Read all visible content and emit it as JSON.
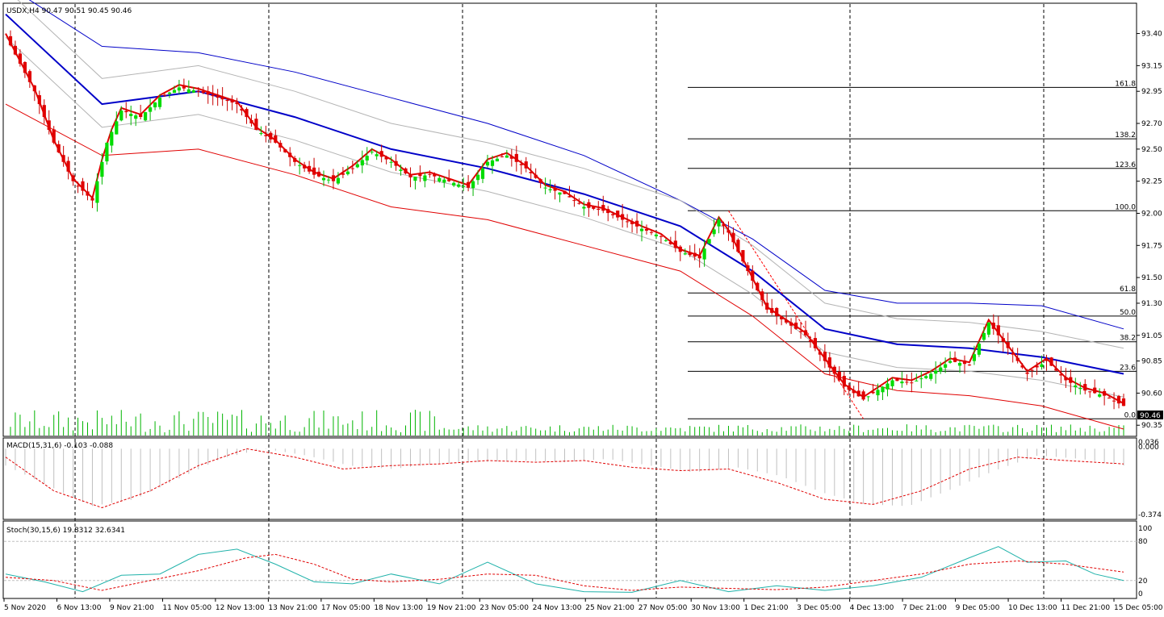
{
  "chart_data": [
    {
      "type": "candlestick",
      "symbol_header": "USDX,H4  90.47 90.51 90.45 90.46",
      "last_price_label": "90.46",
      "price_ticks": [
        "93.40",
        "93.15",
        "92.95",
        "92.70",
        "92.50",
        "92.25",
        "92.00",
        "91.75",
        "91.50",
        "91.30",
        "91.05",
        "90.85",
        "90.60",
        "90.35"
      ],
      "ylim": [
        90.32,
        93.46
      ],
      "x_ticks": [
        "5 Nov 2020",
        "6 Nov 13:00",
        "9 Nov 21:00",
        "11 Nov 05:00",
        "12 Nov 13:00",
        "13 Nov 21:00",
        "17 Nov 05:00",
        "18 Nov 13:00",
        "19 Nov 21:00",
        "23 Nov 05:00",
        "24 Nov 13:00",
        "25 Nov 21:00",
        "27 Nov 05:00",
        "30 Nov 13:00",
        "1 Dec 21:00",
        "3 Dec 05:00",
        "4 Dec 13:00",
        "7 Dec 21:00",
        "9 Dec 05:00",
        "10 Dec 13:00",
        "11 Dec 21:00",
        "15 Dec 05:00"
      ],
      "close_path": [
        [
          0,
          93.38
        ],
        [
          6,
          92.95
        ],
        [
          10,
          92.55
        ],
        [
          14,
          92.25
        ],
        [
          18,
          92.1
        ],
        [
          21,
          92.55
        ],
        [
          24,
          92.8
        ],
        [
          28,
          92.75
        ],
        [
          32,
          92.9
        ],
        [
          36,
          92.98
        ],
        [
          40,
          92.95
        ],
        [
          44,
          92.9
        ],
        [
          48,
          92.85
        ],
        [
          52,
          92.65
        ],
        [
          56,
          92.55
        ],
        [
          60,
          92.4
        ],
        [
          64,
          92.3
        ],
        [
          68,
          92.25
        ],
        [
          72,
          92.35
        ],
        [
          76,
          92.48
        ],
        [
          80,
          92.4
        ],
        [
          84,
          92.28
        ],
        [
          88,
          92.3
        ],
        [
          92,
          92.25
        ],
        [
          96,
          92.2
        ],
        [
          100,
          92.4
        ],
        [
          104,
          92.45
        ],
        [
          108,
          92.35
        ],
        [
          112,
          92.2
        ],
        [
          116,
          92.15
        ],
        [
          120,
          92.05
        ],
        [
          124,
          92.02
        ],
        [
          128,
          91.95
        ],
        [
          132,
          91.88
        ],
        [
          136,
          91.82
        ],
        [
          140,
          91.7
        ],
        [
          144,
          91.65
        ],
        [
          148,
          91.95
        ],
        [
          150,
          91.85
        ],
        [
          154,
          91.55
        ],
        [
          158,
          91.25
        ],
        [
          162,
          91.15
        ],
        [
          166,
          91.05
        ],
        [
          170,
          90.85
        ],
        [
          174,
          90.65
        ],
        [
          178,
          90.55
        ],
        [
          180,
          90.6
        ],
        [
          184,
          90.7
        ],
        [
          188,
          90.68
        ],
        [
          192,
          90.75
        ],
        [
          196,
          90.85
        ],
        [
          200,
          90.82
        ],
        [
          204,
          91.15
        ],
        [
          208,
          90.95
        ],
        [
          212,
          90.75
        ],
        [
          216,
          90.85
        ],
        [
          220,
          90.7
        ],
        [
          224,
          90.62
        ],
        [
          228,
          90.58
        ],
        [
          232,
          90.5
        ]
      ],
      "overlays": [
        {
          "name": "Envelope upper",
          "color": "#0000c8",
          "path": [
            [
              0,
              93.78
            ],
            [
              20,
              93.3
            ],
            [
              40,
              93.25
            ],
            [
              60,
              93.1
            ],
            [
              80,
              92.9
            ],
            [
              100,
              92.7
            ],
            [
              120,
              92.45
            ],
            [
              140,
              92.1
            ],
            [
              155,
              91.8
            ],
            [
              170,
              91.4
            ],
            [
              185,
              91.3
            ],
            [
              200,
              91.3
            ],
            [
              215,
              91.28
            ],
            [
              232,
              91.1
            ]
          ]
        },
        {
          "name": "Moving average",
          "color": "#0000c8",
          "path": [
            [
              0,
              93.55
            ],
            [
              20,
              92.85
            ],
            [
              40,
              92.95
            ],
            [
              60,
              92.75
            ],
            [
              80,
              92.5
            ],
            [
              100,
              92.35
            ],
            [
              120,
              92.15
            ],
            [
              140,
              91.9
            ],
            [
              155,
              91.55
            ],
            [
              170,
              91.1
            ],
            [
              185,
              90.98
            ],
            [
              200,
              90.95
            ],
            [
              215,
              90.88
            ],
            [
              232,
              90.75
            ]
          ]
        },
        {
          "name": "Envelope lower",
          "color": "#e00000",
          "path": [
            [
              0,
              92.85
            ],
            [
              20,
              92.45
            ],
            [
              40,
              92.5
            ],
            [
              60,
              92.3
            ],
            [
              80,
              92.05
            ],
            [
              100,
              91.95
            ],
            [
              120,
              91.75
            ],
            [
              140,
              91.55
            ],
            [
              155,
              91.2
            ],
            [
              170,
              90.75
            ],
            [
              185,
              90.62
            ],
            [
              200,
              90.58
            ],
            [
              215,
              90.5
            ],
            [
              232,
              90.32
            ]
          ]
        }
      ],
      "fibonacci_levels": [
        {
          "label": "161.8",
          "price": 92.98
        },
        {
          "label": "138.2",
          "price": 92.58
        },
        {
          "label": "123.6",
          "price": 92.35
        },
        {
          "label": "100.0",
          "price": 92.02
        },
        {
          "label": "61.8",
          "price": 91.38
        },
        {
          "label": "50.0",
          "price": 91.2
        },
        {
          "label": "38.2",
          "price": 91.0
        },
        {
          "label": "23.6",
          "price": 90.77
        },
        {
          "label": "0.0",
          "price": 90.4
        }
      ]
    },
    {
      "type": "histogram",
      "title": "MACD(15,31,6) -0.103 -0.088",
      "ticks": [
        "0.036",
        "0.000",
        "-0.374"
      ],
      "ylim": [
        -0.4,
        0.04
      ],
      "signal_path": [
        [
          0,
          -0.05
        ],
        [
          10,
          -0.25
        ],
        [
          20,
          -0.35
        ],
        [
          30,
          -0.25
        ],
        [
          40,
          -0.1
        ],
        [
          50,
          0.0
        ],
        [
          60,
          -0.05
        ],
        [
          70,
          -0.12
        ],
        [
          80,
          -0.1
        ],
        [
          90,
          -0.09
        ],
        [
          100,
          -0.07
        ],
        [
          110,
          -0.08
        ],
        [
          120,
          -0.07
        ],
        [
          130,
          -0.11
        ],
        [
          140,
          -0.13
        ],
        [
          150,
          -0.12
        ],
        [
          160,
          -0.2
        ],
        [
          170,
          -0.3
        ],
        [
          180,
          -0.33
        ],
        [
          190,
          -0.25
        ],
        [
          200,
          -0.12
        ],
        [
          210,
          -0.05
        ],
        [
          220,
          -0.07
        ],
        [
          232,
          -0.09
        ]
      ],
      "histogram": [
        -0.1,
        -0.22,
        -0.34,
        -0.3,
        -0.18,
        -0.06,
        0.0,
        -0.04,
        -0.1,
        -0.12,
        -0.09,
        -0.08,
        -0.07,
        -0.08,
        -0.06,
        -0.1,
        -0.14,
        -0.11,
        -0.16,
        -0.26,
        -0.33,
        -0.34,
        -0.24,
        -0.13,
        -0.04,
        -0.06,
        -0.1
      ]
    },
    {
      "type": "line",
      "title": "Stoch(30,15,6) 19.8312 32.6341",
      "ticks": [
        "100",
        "80",
        "20",
        "0"
      ],
      "ylim": [
        0,
        100
      ],
      "levels": [
        80,
        20
      ],
      "main_path": [
        [
          0,
          30
        ],
        [
          8,
          18
        ],
        [
          16,
          3
        ],
        [
          24,
          28
        ],
        [
          32,
          30
        ],
        [
          40,
          60
        ],
        [
          48,
          68
        ],
        [
          56,
          45
        ],
        [
          64,
          18
        ],
        [
          72,
          15
        ],
        [
          80,
          30
        ],
        [
          90,
          15
        ],
        [
          100,
          48
        ],
        [
          110,
          15
        ],
        [
          120,
          3
        ],
        [
          130,
          2
        ],
        [
          140,
          20
        ],
        [
          150,
          3
        ],
        [
          160,
          12
        ],
        [
          170,
          5
        ],
        [
          180,
          12
        ],
        [
          190,
          25
        ],
        [
          200,
          55
        ],
        [
          206,
          72
        ],
        [
          212,
          48
        ],
        [
          220,
          50
        ],
        [
          226,
          30
        ],
        [
          232,
          20
        ]
      ],
      "signal_path": [
        [
          0,
          25
        ],
        [
          10,
          20
        ],
        [
          20,
          5
        ],
        [
          30,
          20
        ],
        [
          40,
          35
        ],
        [
          50,
          55
        ],
        [
          56,
          60
        ],
        [
          64,
          45
        ],
        [
          72,
          22
        ],
        [
          80,
          18
        ],
        [
          90,
          22
        ],
        [
          100,
          30
        ],
        [
          110,
          28
        ],
        [
          120,
          12
        ],
        [
          130,
          5
        ],
        [
          140,
          10
        ],
        [
          150,
          8
        ],
        [
          160,
          6
        ],
        [
          170,
          10
        ],
        [
          180,
          20
        ],
        [
          190,
          30
        ],
        [
          200,
          45
        ],
        [
          210,
          50
        ],
        [
          220,
          45
        ],
        [
          232,
          33
        ]
      ]
    }
  ]
}
